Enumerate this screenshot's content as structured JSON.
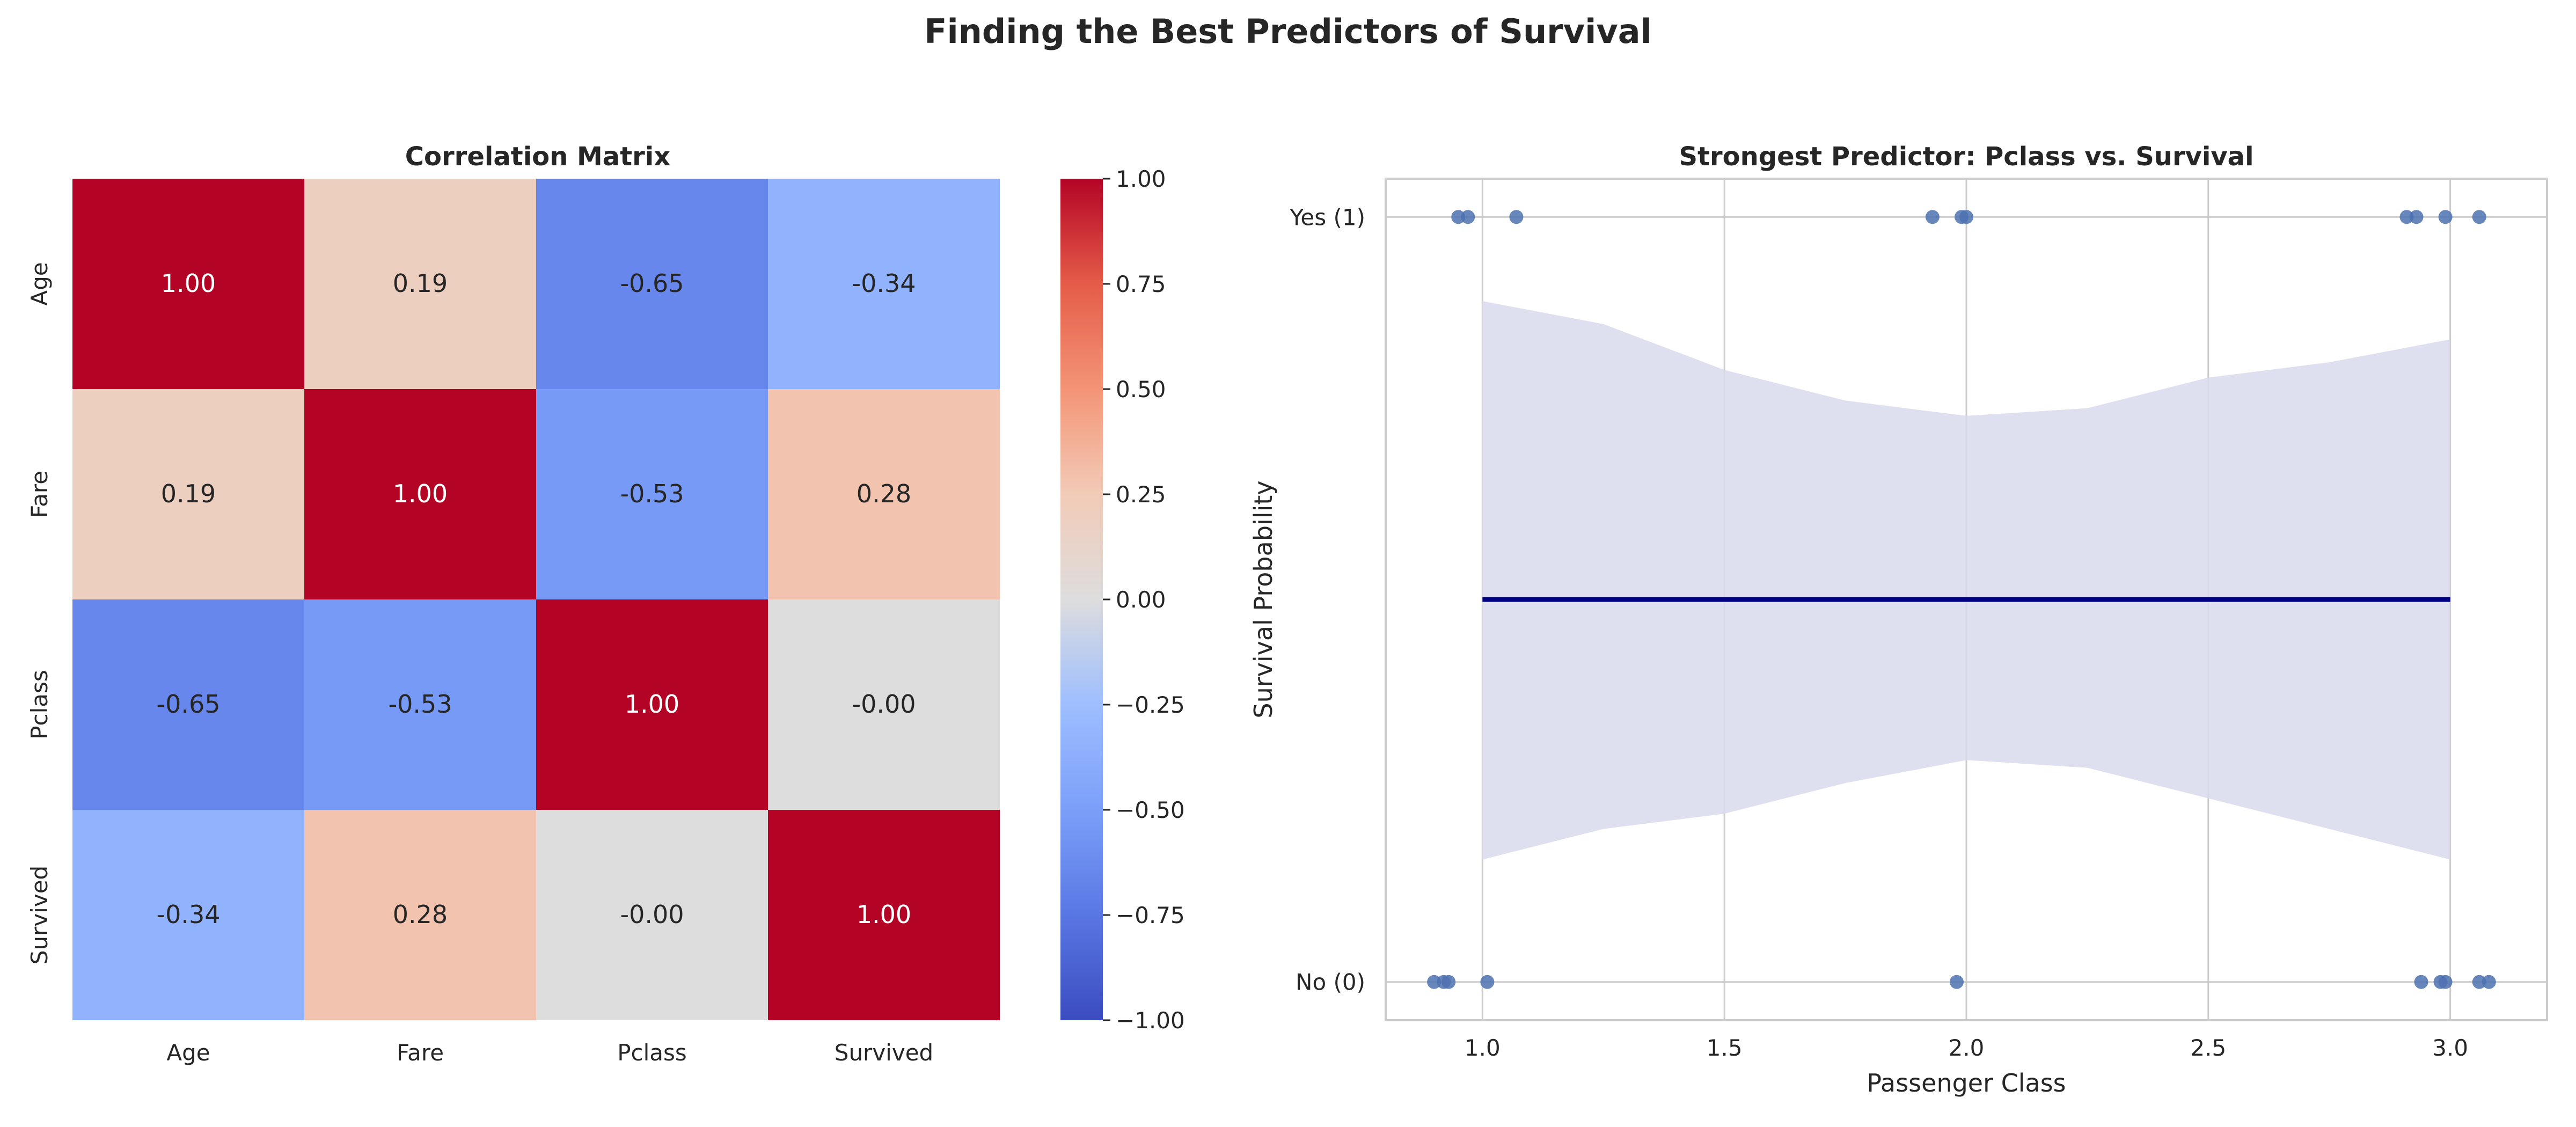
{
  "suptitle": "Finding the Best Predictors of Survival",
  "chart_data": [
    {
      "type": "heatmap",
      "title": "Correlation Matrix",
      "rows": [
        "Age",
        "Fare",
        "Pclass",
        "Survived"
      ],
      "columns": [
        "Age",
        "Fare",
        "Pclass",
        "Survived"
      ],
      "values": [
        [
          1.0,
          0.19,
          -0.65,
          -0.34
        ],
        [
          0.19,
          1.0,
          -0.53,
          0.28
        ],
        [
          -0.65,
          -0.53,
          1.0,
          -0.0
        ],
        [
          -0.34,
          0.28,
          -0.0,
          1.0
        ]
      ],
      "labels": [
        [
          "1.00",
          "0.19",
          "-0.65",
          "-0.34"
        ],
        [
          "0.19",
          "1.00",
          "-0.53",
          "0.28"
        ],
        [
          "-0.65",
          "-0.53",
          "1.00",
          "-0.00"
        ],
        [
          "-0.34",
          "0.28",
          "-0.00",
          "1.00"
        ]
      ],
      "colormap": "coolwarm",
      "vmin": -1.0,
      "vmax": 1.0,
      "colorbar_ticks": [
        1.0,
        0.75,
        0.5,
        0.25,
        0.0,
        -0.25,
        -0.5,
        -0.75,
        -1.0
      ],
      "colorbar_tick_labels": [
        "1.00",
        "0.75",
        "0.50",
        "0.25",
        "0.00",
        "−0.25",
        "−0.50",
        "−0.75",
        "−1.00"
      ]
    },
    {
      "type": "scatter",
      "title": "Strongest Predictor: Pclass vs. Survival",
      "xlabel": "Passenger Class",
      "ylabel": "Survival Probability",
      "xlim": [
        0.8,
        3.2
      ],
      "ylim": [
        -0.05,
        1.05
      ],
      "xticks": [
        1.0,
        1.5,
        2.0,
        2.5,
        3.0
      ],
      "xtick_labels": [
        "1.0",
        "1.5",
        "2.0",
        "2.5",
        "3.0"
      ],
      "yticks": [
        0,
        1
      ],
      "ytick_labels": [
        "No (0)",
        "Yes (1)"
      ],
      "grid": true,
      "point_color": "#4c72b0",
      "points": [
        {
          "x": 0.95,
          "y": 1
        },
        {
          "x": 0.97,
          "y": 1
        },
        {
          "x": 1.07,
          "y": 1
        },
        {
          "x": 1.93,
          "y": 1
        },
        {
          "x": 1.99,
          "y": 1
        },
        {
          "x": 2.0,
          "y": 1
        },
        {
          "x": 2.91,
          "y": 1
        },
        {
          "x": 2.93,
          "y": 1
        },
        {
          "x": 2.99,
          "y": 1
        },
        {
          "x": 3.06,
          "y": 1
        },
        {
          "x": 0.9,
          "y": 0
        },
        {
          "x": 0.92,
          "y": 0
        },
        {
          "x": 0.93,
          "y": 0
        },
        {
          "x": 1.01,
          "y": 0
        },
        {
          "x": 1.98,
          "y": 0
        },
        {
          "x": 2.94,
          "y": 0
        },
        {
          "x": 2.98,
          "y": 0
        },
        {
          "x": 2.99,
          "y": 0
        },
        {
          "x": 3.06,
          "y": 0
        },
        {
          "x": 3.08,
          "y": 0
        }
      ],
      "fit_line": {
        "x": [
          1.0,
          3.0
        ],
        "y": [
          0.5,
          0.5
        ],
        "color": "#000080"
      },
      "ci_color": "#d8d9ec",
      "ci_band": {
        "x": [
          1.0,
          1.25,
          1.5,
          1.75,
          2.0,
          2.25,
          2.5,
          2.75,
          3.0
        ],
        "upper": [
          0.89,
          0.86,
          0.8,
          0.76,
          0.74,
          0.75,
          0.79,
          0.81,
          0.84
        ],
        "lower": [
          0.16,
          0.2,
          0.22,
          0.26,
          0.29,
          0.28,
          0.24,
          0.2,
          0.16
        ]
      }
    }
  ]
}
